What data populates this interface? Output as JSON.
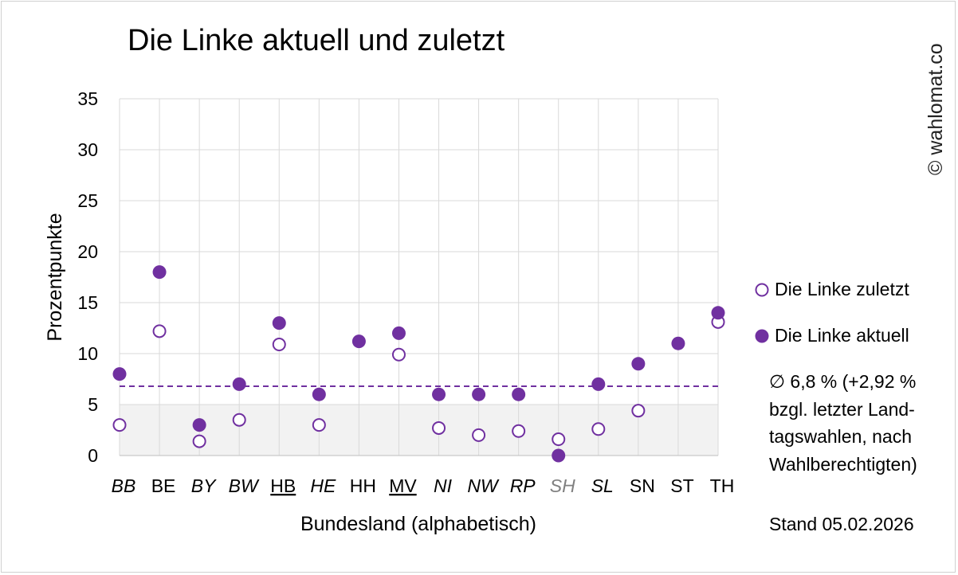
{
  "title": "Die Linke aktuell und zuletzt",
  "copyright": "© wahlomat.co",
  "legend": {
    "zuletzt": "Die Linke zuletzt",
    "aktuell": "Die Linke aktuell"
  },
  "note": "∅ 6,8 % (+2,92 % bzgl. letzter Land-tagswahlen, nach Wahlberechtigten)",
  "stand": "Stand 05.02.2026",
  "colors": {
    "accent": "#7030a0",
    "band": "#f2f2f2",
    "grid": "#d9d9d9",
    "grey_label": "#808080"
  },
  "chart_data": {
    "type": "scatter",
    "title": "Die Linke aktuell und zuletzt",
    "xlabel": "Bundesland (alphabetisch)",
    "ylabel": "Prozentpunkte",
    "ylim": [
      0,
      35
    ],
    "yticks": [
      0,
      5,
      10,
      15,
      20,
      25,
      30,
      35
    ],
    "grid": true,
    "legend_position": "right",
    "categories": [
      "BB",
      "BE",
      "BY",
      "BW",
      "HB",
      "HE",
      "HH",
      "MV",
      "NI",
      "NW",
      "RP",
      "SH",
      "SL",
      "SN",
      "ST",
      "TH"
    ],
    "category_style": {
      "italic": [
        "BB",
        "BY",
        "BW",
        "HE",
        "NI",
        "NW",
        "RP",
        "SH",
        "SL"
      ],
      "underline": [
        "HB",
        "MV"
      ],
      "grey": [
        "SH"
      ]
    },
    "series": [
      {
        "name": "Die Linke zuletzt",
        "marker": "open-circle",
        "values": [
          3.0,
          12.2,
          1.4,
          3.5,
          10.9,
          3.0,
          null,
          9.9,
          2.7,
          2.0,
          2.4,
          1.6,
          2.6,
          4.4,
          null,
          13.1
        ]
      },
      {
        "name": "Die Linke aktuell",
        "marker": "filled-circle",
        "values": [
          8,
          18,
          3,
          7,
          13,
          6,
          11.2,
          12,
          6,
          6,
          6,
          0,
          7,
          9,
          11,
          14
        ]
      }
    ],
    "average_line": 6.8,
    "threshold_band": [
      0,
      5
    ]
  }
}
